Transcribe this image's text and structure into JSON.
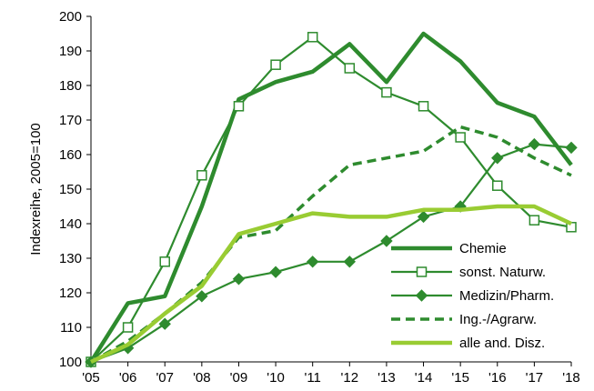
{
  "chart_data": {
    "type": "line",
    "title": "",
    "xlabel": "",
    "ylabel": "Indexreihe, 2005=100",
    "ylim": [
      100,
      200
    ],
    "yticks": [
      100,
      110,
      120,
      130,
      140,
      150,
      160,
      170,
      180,
      190,
      200
    ],
    "categories": [
      "'05",
      "'06",
      "'07",
      "'08",
      "'09",
      "'10",
      "'11",
      "'12",
      "'13",
      "'14",
      "'15",
      "'16",
      "'17",
      "'18"
    ],
    "grid": false,
    "legend_position": "bottom-right",
    "series": [
      {
        "name": "Chemie",
        "color": "#2e8b2e",
        "style": "solid-thick",
        "marker": "none",
        "values": [
          100,
          117,
          119,
          145,
          176,
          181,
          184,
          192,
          181,
          195,
          187,
          175,
          171,
          157
        ]
      },
      {
        "name": "sonst. Naturw.",
        "color": "#2e8b2e",
        "style": "solid",
        "marker": "open-square",
        "values": [
          100,
          110,
          129,
          154,
          174,
          186,
          194,
          185,
          178,
          174,
          165,
          151,
          141,
          139
        ]
      },
      {
        "name": "Medizin/Pharm.",
        "color": "#2e8b2e",
        "style": "solid",
        "marker": "filled-diamond",
        "values": [
          100,
          104,
          111,
          119,
          124,
          126,
          129,
          129,
          135,
          142,
          145,
          159,
          163,
          162
        ]
      },
      {
        "name": "Ing.-/Agrarw.",
        "color": "#2e8b2e",
        "style": "dashed",
        "marker": "none",
        "values": [
          100,
          106,
          114,
          123,
          136,
          138,
          148,
          157,
          159,
          161,
          168,
          165,
          159,
          154
        ]
      },
      {
        "name": "alle and. Disz.",
        "color": "#99cc33",
        "style": "solid-thick",
        "marker": "none",
        "values": [
          100,
          105,
          114,
          122,
          137,
          140,
          143,
          142,
          142,
          144,
          144,
          145,
          145,
          140
        ]
      }
    ]
  }
}
